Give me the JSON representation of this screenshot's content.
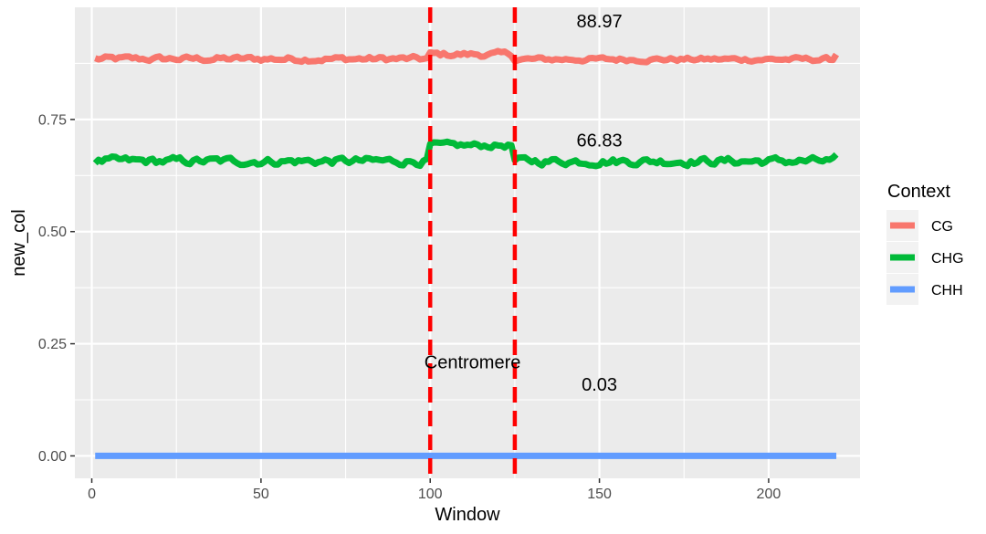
{
  "chart_data": {
    "type": "line",
    "xlabel": "Window",
    "ylabel": "new_col",
    "xlim": [
      -5,
      227
    ],
    "ylim": [
      -0.05,
      1.0
    ],
    "xticks": [
      0,
      50,
      100,
      150,
      200
    ],
    "xtick_labels": [
      "0",
      "50",
      "100",
      "150",
      "200"
    ],
    "yticks": [
      0.0,
      0.25,
      0.5,
      0.75
    ],
    "ytick_labels": [
      "0.00",
      "0.25",
      "0.50",
      "0.75"
    ],
    "grid": true,
    "legend": {
      "title": "Context",
      "position": "right"
    },
    "series": [
      {
        "name": "CG",
        "color": "#F8766D",
        "x_start": 1,
        "x_end": 220,
        "segments": [
          {
            "from": 1,
            "to": 99,
            "level": 0.885,
            "noise": 0.005
          },
          {
            "from": 100,
            "to": 124,
            "level": 0.895,
            "noise": 0.005
          },
          {
            "from": 125,
            "to": 220,
            "level": 0.884,
            "noise": 0.004
          }
        ],
        "end_value": 0.895
      },
      {
        "name": "CHG",
        "color": "#00BA38",
        "x_start": 1,
        "x_end": 220,
        "segments": [
          {
            "from": 1,
            "to": 99,
            "level": 0.657,
            "noise": 0.007
          },
          {
            "from": 100,
            "to": 124,
            "level": 0.692,
            "noise": 0.005
          },
          {
            "from": 125,
            "to": 220,
            "level": 0.657,
            "noise": 0.007
          }
        ],
        "end_value": 0.672
      },
      {
        "name": "CHH",
        "color": "#619CFF",
        "x_start": 1,
        "x_end": 220,
        "segments": [
          {
            "from": 1,
            "to": 220,
            "level": 0.0,
            "noise": 0.0
          }
        ],
        "end_value": 0.0
      }
    ],
    "vlines": [
      {
        "x": 100,
        "color": "#FF0000",
        "style": "dashed"
      },
      {
        "x": 125,
        "color": "#FF0000",
        "style": "dashed"
      }
    ],
    "annotations": [
      {
        "text": "88.97",
        "x": 150,
        "y": 0.955
      },
      {
        "text": "66.83",
        "x": 150,
        "y": 0.69
      },
      {
        "text": "Centromere",
        "x": 112.5,
        "y": 0.195
      },
      {
        "text": "0.03",
        "x": 150,
        "y": 0.145
      }
    ]
  }
}
